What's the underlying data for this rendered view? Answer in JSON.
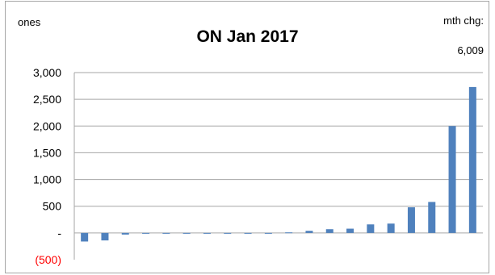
{
  "header": {
    "units": "ones",
    "month_change_label": "mth chg:",
    "month_change_value": "6,009"
  },
  "colors": {
    "bar": "#4f81bd",
    "gridline": "#a6a6a6",
    "negative_tick": "#ff0000"
  },
  "chart_data": {
    "type": "bar",
    "title": "ON Jan 2017",
    "xlabel": "",
    "ylabel": "",
    "ylim": [
      -500,
      3000
    ],
    "grid": true,
    "yticks": [
      {
        "value": 3000,
        "label": "3,000"
      },
      {
        "value": 2500,
        "label": "2,500"
      },
      {
        "value": 2000,
        "label": "2,000"
      },
      {
        "value": 1500,
        "label": "1,500"
      },
      {
        "value": 1000,
        "label": "1,000"
      },
      {
        "value": 500,
        "label": "500"
      },
      {
        "value": 0,
        "label": "-"
      },
      {
        "value": -500,
        "label": "(500)"
      }
    ],
    "values": [
      -160,
      -140,
      -30,
      -10,
      -5,
      -5,
      -5,
      -5,
      -5,
      -5,
      10,
      40,
      70,
      80,
      160,
      175,
      480,
      580,
      2000,
      2730
    ]
  }
}
